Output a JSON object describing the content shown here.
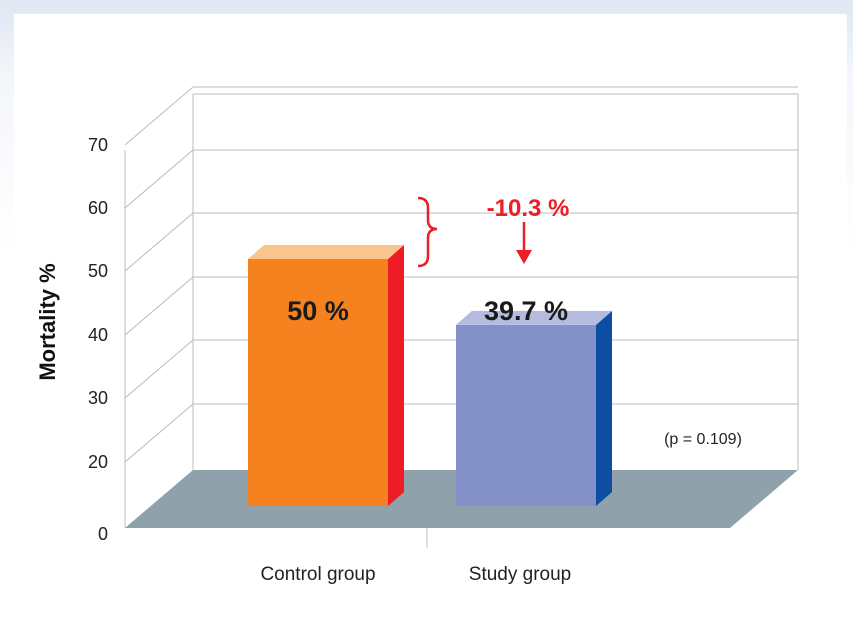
{
  "chart_data": {
    "type": "bar",
    "title": "",
    "xlabel": "",
    "ylabel": "Mortality %",
    "y_ticks": [
      "0",
      "20",
      "30",
      "40",
      "50",
      "60",
      "70"
    ],
    "categories": [
      "Control group",
      "Study group"
    ],
    "values": [
      50,
      39.7
    ],
    "data_labels": [
      "50 %",
      "39.7 %"
    ],
    "colors": {
      "control_front": "#f5821f",
      "control_side": "#ee1c25",
      "control_top": "#fbc48c",
      "study_front": "#8391c8",
      "study_side": "#0e4ea2",
      "study_top": "#b3bcdf",
      "floor": "#8fa1aa",
      "annotation": "#ee1c25"
    },
    "annotations": {
      "difference": "-10.3 %",
      "p_value": "(p = 0.109)"
    },
    "grid": true,
    "legend": "none"
  }
}
